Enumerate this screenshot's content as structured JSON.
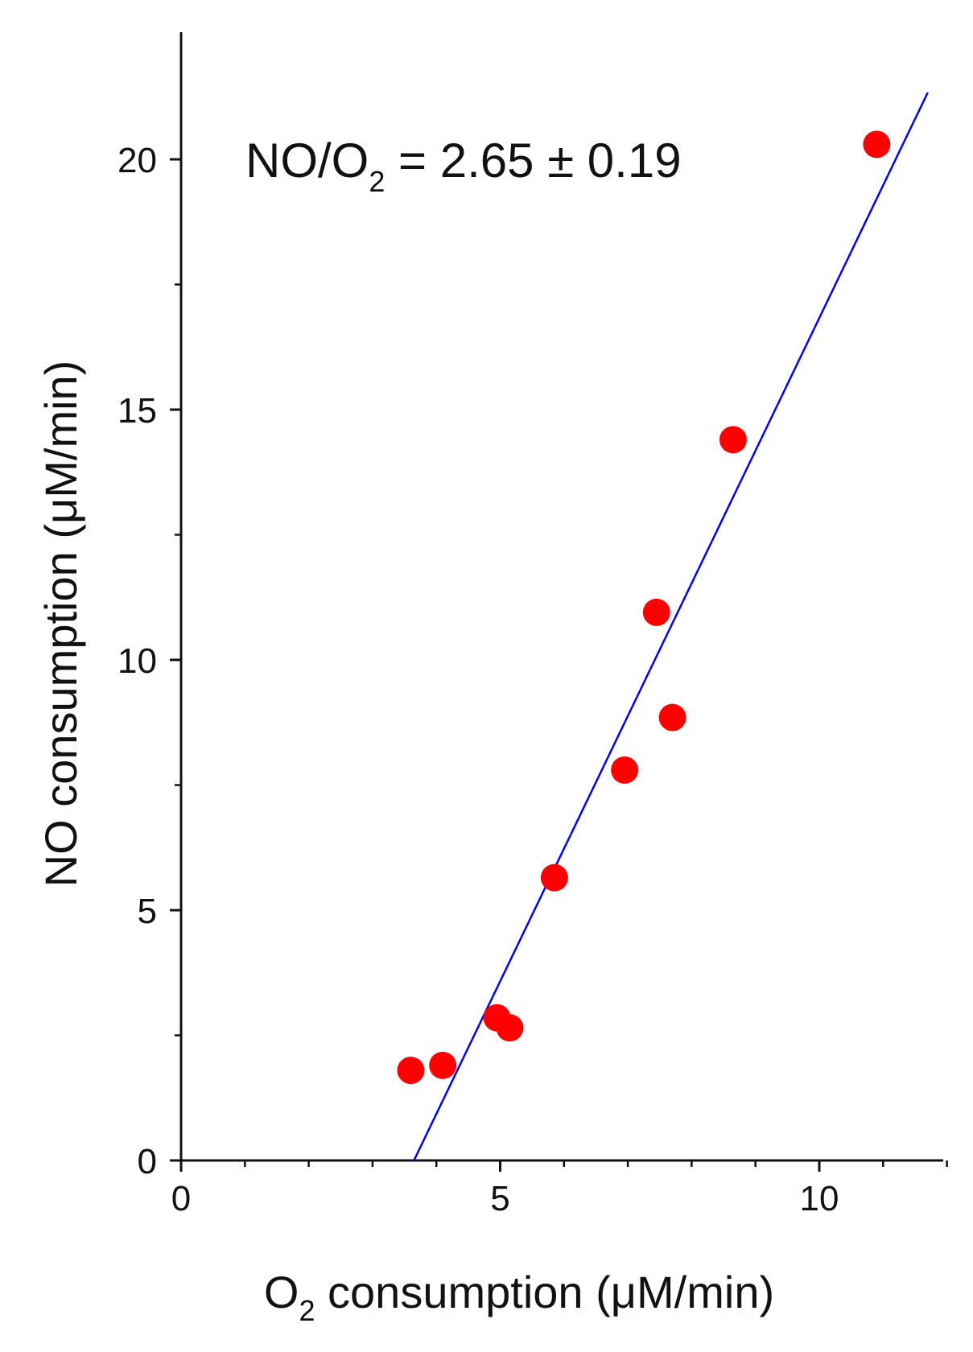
{
  "chart_data": {
    "type": "scatter",
    "title": "",
    "annotation": {
      "parts": [
        "NO/O",
        "2",
        " = 2.65 ± 0.19"
      ]
    },
    "xlabel": {
      "parts": [
        "O",
        "2",
        " consumption (μM/min)"
      ]
    },
    "ylabel": "NO consumption (μM/min)",
    "xlim": [
      0,
      12
    ],
    "ylim": [
      0,
      22.5
    ],
    "x_major_ticks": [
      0,
      5,
      10
    ],
    "x_tick_labels": [
      "0",
      "5",
      "10"
    ],
    "x_minor_ticks": [
      1,
      2,
      3,
      4,
      6,
      7,
      8,
      9,
      11,
      12
    ],
    "y_major_ticks": [
      0,
      5,
      10,
      15,
      20
    ],
    "y_tick_labels": [
      "0",
      "5",
      "10",
      "15",
      "20"
    ],
    "y_minor_ticks": [
      2.5,
      7.5,
      12.5,
      17.5
    ],
    "grid": false,
    "series": [
      {
        "kind": "points",
        "color": "#ff0000",
        "points": [
          {
            "x": 3.6,
            "y": 1.8
          },
          {
            "x": 4.1,
            "y": 1.9
          },
          {
            "x": 4.95,
            "y": 2.85
          },
          {
            "x": 5.15,
            "y": 2.65
          },
          {
            "x": 5.85,
            "y": 5.65
          },
          {
            "x": 6.95,
            "y": 7.8
          },
          {
            "x": 7.45,
            "y": 10.95
          },
          {
            "x": 7.7,
            "y": 8.85
          },
          {
            "x": 8.65,
            "y": 14.4
          },
          {
            "x": 10.9,
            "y": 20.3
          }
        ]
      },
      {
        "kind": "fit-line",
        "color": "#0000ee",
        "x_range": [
          3.65,
          11.7
        ],
        "slope": 2.65,
        "intercept": -9.67
      }
    ]
  }
}
